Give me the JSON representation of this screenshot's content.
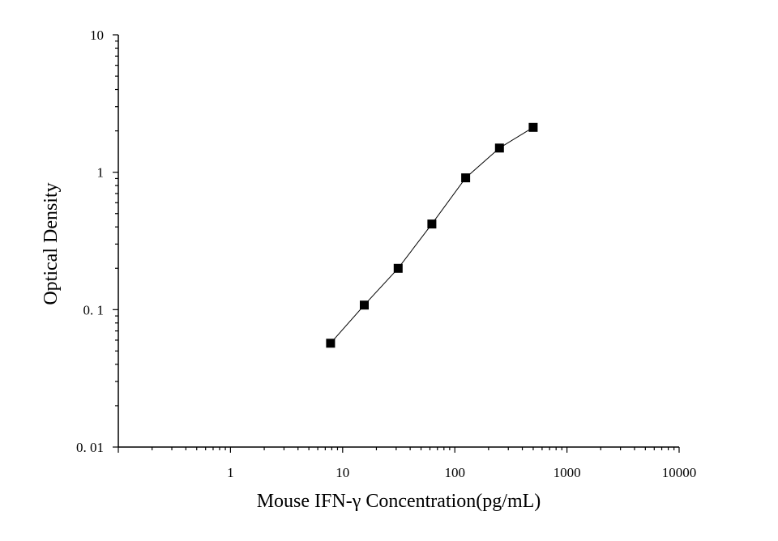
{
  "chart_data": {
    "type": "line",
    "xlabel": "Mouse IFN-γ Concentration(pg/mL)",
    "ylabel": "Optical Density",
    "x_scale": "log",
    "y_scale": "log",
    "xlim": [
      0.1,
      10000
    ],
    "ylim": [
      0.01,
      10
    ],
    "x_tick_labels": [
      "1",
      "10",
      "100",
      "1000",
      "10000"
    ],
    "y_tick_labels": [
      "10",
      "1",
      "0. 1",
      "0. 01"
    ],
    "grid": false,
    "series": [
      {
        "marker": "square",
        "color": "#000000",
        "x": [
          7.8,
          15.6,
          31.25,
          62.5,
          125,
          250,
          500
        ],
        "y": [
          0.057,
          0.108,
          0.2,
          0.42,
          0.91,
          1.5,
          2.12
        ]
      }
    ]
  }
}
